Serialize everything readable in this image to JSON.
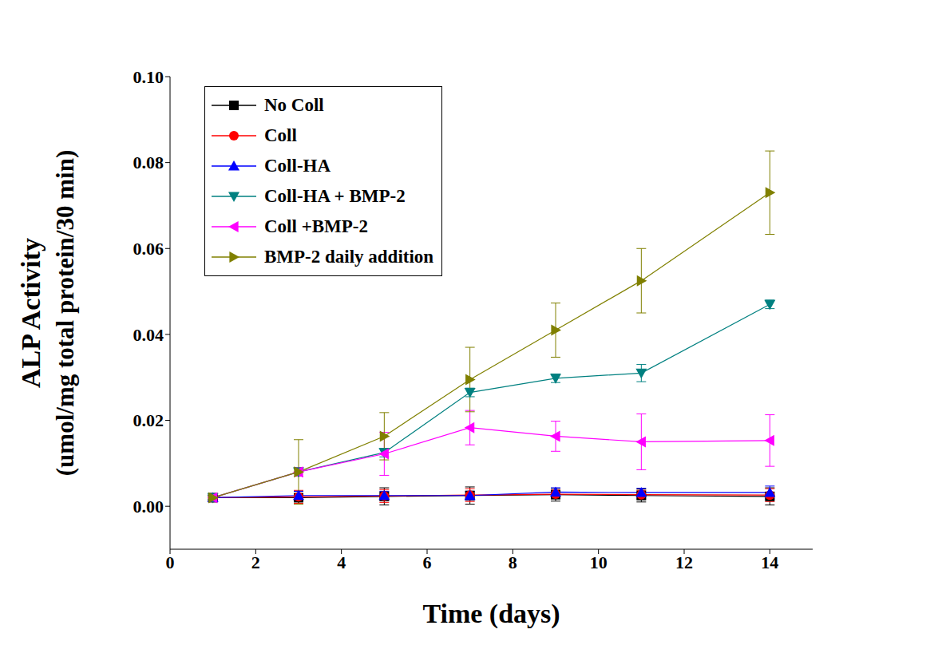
{
  "chart_data": {
    "type": "line",
    "xlabel": "Time (days)",
    "ylabel": [
      "ALP Activity",
      "(umol/mg total protein/30 min)"
    ],
    "x": [
      1,
      3,
      5,
      7,
      9,
      11,
      14
    ],
    "xlim": [
      0,
      15
    ],
    "xticks": [
      0,
      2,
      4,
      6,
      8,
      10,
      12,
      14
    ],
    "ylim": [
      -0.01,
      0.1
    ],
    "yticks": [
      {
        "value": 0,
        "label": "0.00"
      },
      {
        "value": 0.02,
        "label": "0.02"
      },
      {
        "value": 0.04,
        "label": "0.04"
      },
      {
        "value": 0.06,
        "label": "0.06"
      },
      {
        "value": 0.08,
        "label": "0.08"
      },
      {
        "value": 0.1,
        "label": "0.10"
      }
    ],
    "grid": false,
    "legend": "upper left",
    "series": [
      {
        "name": "No Coll",
        "color": "#000000",
        "marker": "square",
        "values": [
          0.002,
          0.002,
          0.0023,
          0.0025,
          0.0027,
          0.0025,
          0.0023
        ],
        "errors": [
          0.0005,
          0.0015,
          0.002,
          0.002,
          0.0015,
          0.0015,
          0.002
        ]
      },
      {
        "name": "Coll",
        "color": "#ff0000",
        "marker": "circle",
        "values": [
          0.002,
          0.0022,
          0.0024,
          0.0026,
          0.0028,
          0.0027,
          0.0026
        ],
        "errors": [
          0.0005,
          0.0015,
          0.0015,
          0.0015,
          0.001,
          0.001,
          0.0015
        ]
      },
      {
        "name": "Coll-HA",
        "color": "#0000ff",
        "marker": "triangle-up",
        "values": [
          0.002,
          0.0025,
          0.0025,
          0.0025,
          0.0033,
          0.0032,
          0.0032
        ],
        "errors": [
          0.0005,
          0.001,
          0.001,
          0.001,
          0.001,
          0.001,
          0.0015
        ]
      },
      {
        "name": "Coll-HA + BMP-2",
        "color": "#008080",
        "marker": "triangle-down",
        "values": [
          0.002,
          0.008,
          0.0125,
          0.0265,
          0.0298,
          0.031,
          0.047
        ],
        "errors": [
          0.0005,
          0.001,
          0.001,
          0.001,
          0.001,
          0.002,
          0.001
        ]
      },
      {
        "name": "Coll +BMP-2",
        "color": "#ff00ff",
        "marker": "triangle-left",
        "values": [
          0.002,
          0.008,
          0.0122,
          0.0183,
          0.0163,
          0.015,
          0.0153
        ],
        "errors": [
          0.0,
          0.001,
          0.005,
          0.004,
          0.0035,
          0.0065,
          0.006
        ]
      },
      {
        "name": "BMP-2 daily addition",
        "color": "#808000",
        "marker": "triangle-right",
        "values": [
          0.002,
          0.008,
          0.0163,
          0.0295,
          0.041,
          0.0525,
          0.073
        ],
        "errors": [
          0.0,
          0.0075,
          0.0055,
          0.0075,
          0.0063,
          0.0075,
          0.0097
        ]
      }
    ]
  }
}
